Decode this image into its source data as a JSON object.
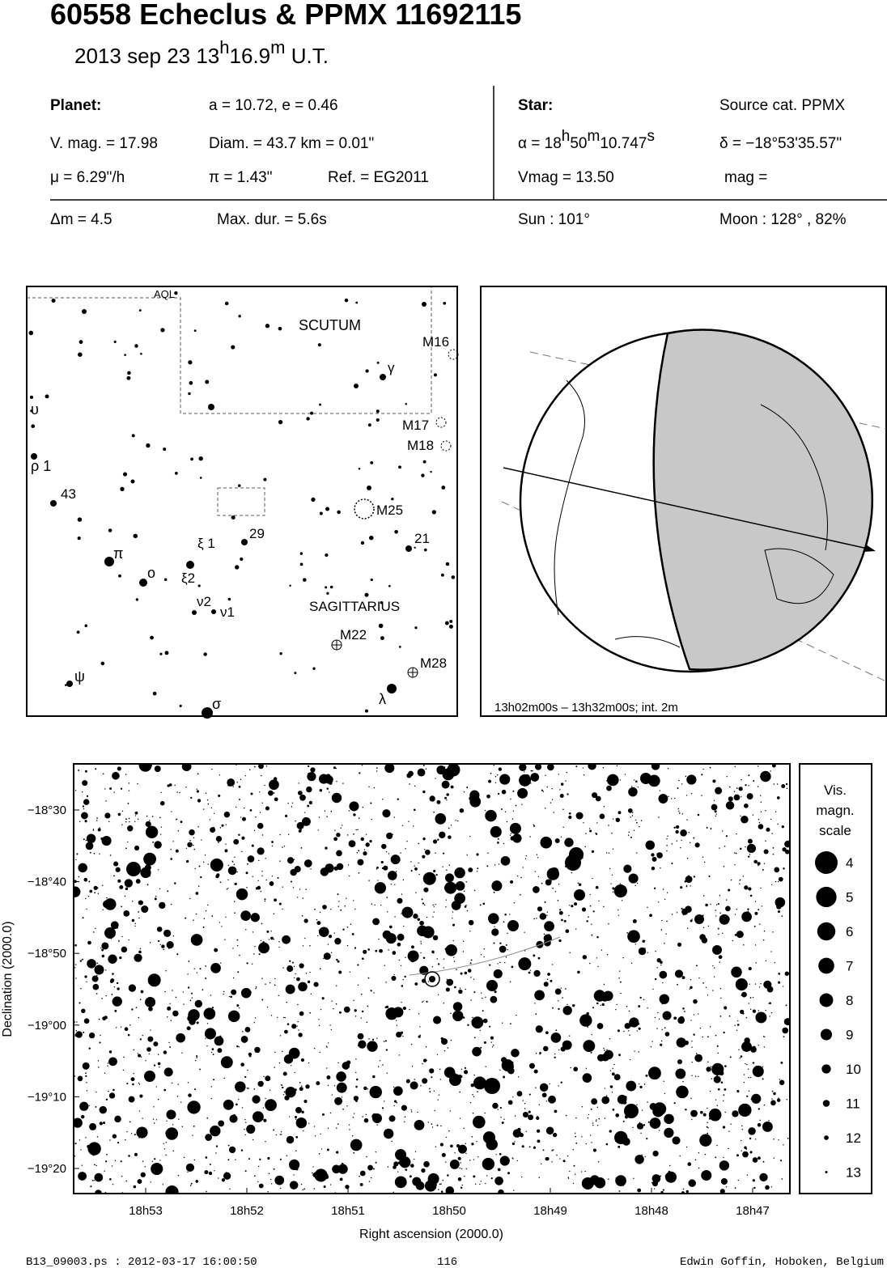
{
  "header": {
    "title": "60558 Echeclus  &  PPMX 11692115",
    "date": [
      "2013 sep 23  13",
      "h",
      "16.9",
      "m",
      " U.T."
    ]
  },
  "info": {
    "planet_label": "Planet:",
    "orbit": "a = 10.72, e = 0.46",
    "vmag": "V. mag. = 17.98",
    "diam": "Diam. = 43.7 km = 0.01\"",
    "mu": "μ =  6.29\"/h",
    "parallax": "π =  1.43\"",
    "ref": "Ref. = EG2011",
    "star_label": "Star:",
    "source": "Source cat.  PPMX",
    "alpha": [
      "α = 18",
      "h",
      "50",
      "m",
      "10.747",
      "s"
    ],
    "delta": "δ = −18°53'35.57\"",
    "star_vmag": "Vmag = 13.50",
    "mag": "mag =",
    "dm": "Δm = 4.5",
    "max_dur": "Max. dur. = 5.6s",
    "sun": "Sun : 101°",
    "moon": "Moon : 128° , 82%"
  },
  "finder": {
    "labels": [
      "AQL",
      "SCUTUM",
      "M16",
      "γ",
      "υ",
      "M17",
      "M18",
      "ρ 1",
      "43",
      "M25",
      "29",
      "21",
      "ξ 1",
      "π",
      "ο",
      "ξ2",
      "ν2",
      "ν1",
      "SAGITTARIUS",
      "M22",
      "M28",
      "ψ",
      "λ",
      "σ"
    ]
  },
  "globe": {
    "caption": "13h02m00s – 13h32m00s; int.  2m"
  },
  "detail": {
    "y_labels": [
      "−18°30",
      "−18°40",
      "−18°50",
      "−19°00",
      "−19°10",
      "−19°20"
    ],
    "x_labels": [
      "18h53",
      "18h52",
      "18h51",
      "18h50",
      "18h49",
      "18h48",
      "18h47"
    ],
    "x_title": "Right ascension (2000.0)",
    "y_title": "Declination (2000.0)"
  },
  "scale": {
    "title": [
      "Vis.",
      "magn.",
      "scale"
    ],
    "magnitudes": [
      4,
      5,
      6,
      7,
      8,
      9,
      10,
      11,
      12,
      13
    ]
  },
  "footer": {
    "file": "B13_09003.ps : 2012-03-17 16:00:50",
    "page": "116",
    "author": "Edwin Goffin, Hoboken, Belgium"
  }
}
